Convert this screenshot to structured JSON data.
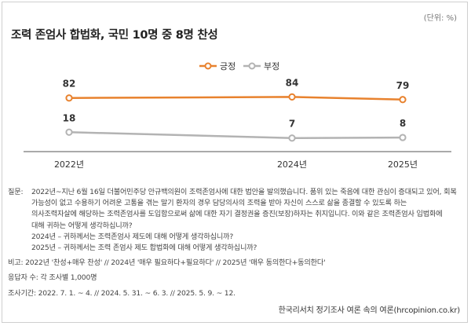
{
  "unit_note": "(단위: %)",
  "title": "조력 존엄사 합법화, 국민 10명 중 8명 찬성",
  "chart_data": {
    "type": "line",
    "categories": [
      "2022년",
      "2024년",
      "2025년"
    ],
    "series": [
      {
        "name": "긍정",
        "values": [
          82,
          84,
          79
        ],
        "color": "#e8822e"
      },
      {
        "name": "부정",
        "values": [
          18,
          7,
          8
        ],
        "color": "#b3b3b3"
      }
    ],
    "title": "조력 존엄사 합법화, 국민 10명 중 8명 찬성",
    "xlabel": "",
    "ylabel": "",
    "ylim": [
      0,
      100
    ],
    "legend": "top-center"
  },
  "notes": {
    "question_label": "질문:",
    "question_lines": [
      "2022년~지난 6월 16일 더불어민주당 안규백의원이 조력존엄사에 대한 법안을 발의했습니다. 품위 있는 죽음에 대한 관심이 증대되고 있어, 회복",
      "가능성이 없고 수용하기 어려운 고통을 겪는 말기 환자의 경우 담당의사의 조력을 받아 자신이 스스로 삶을 종결할 수 있도록 하는",
      "의사조력자살에 해당하는 조력존엄사를 도입함으로써 삶에 대한 자기 결정권을 증진(보장)하자는 취지입니다. 이와 같은 조력존엄사 입법화에",
      "대해 귀하는 어떻게 생각하십니까?",
      "2024년 – 귀하께서는 조력존엄사 제도에 대해 어떻게 생각하십니까?",
      "2025년 – 귀하께서는 조력 존엄사 제도 합법화에 대해 어떻게 생각하십니까?"
    ],
    "comparison": "비고: 2022년 '찬성+매우 찬성' // 2024년 '매우 필요하다+필요하다' // 2025년 '매우 동의한다+동의한다'",
    "respondents": "응답자 수: 각 조사별 1,000명",
    "period": "조사기간: 2022. 7. 1. ~ 4. // 2024. 5. 31. ~ 6. 3. // 2025. 5. 9. ~ 12."
  },
  "footer": "한국리서치 정기조사 여론 속의 여론(hrcopinion.co.kr)"
}
